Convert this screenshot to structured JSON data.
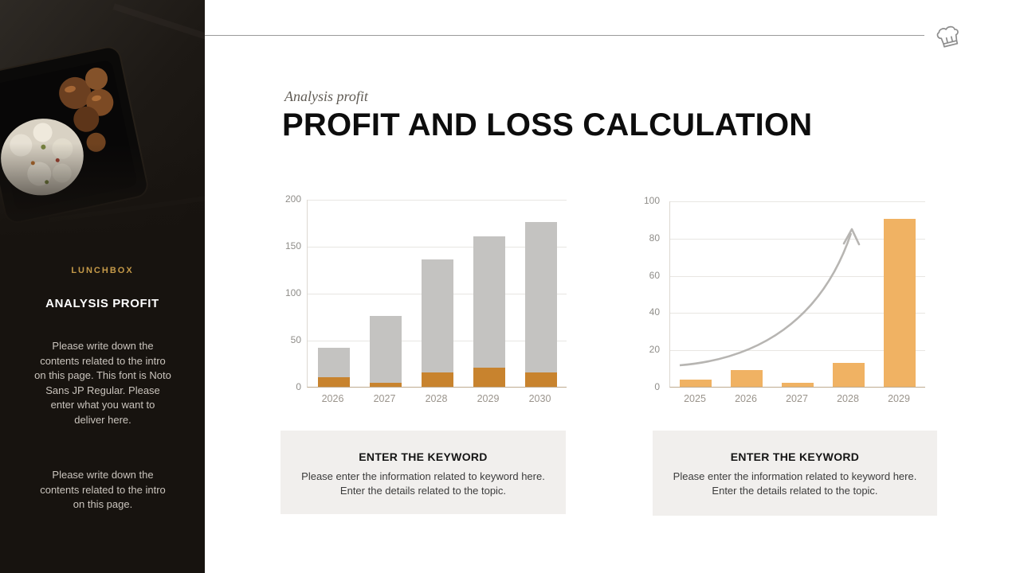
{
  "sidebar": {
    "brand": "LUNCHBOX",
    "title": "ANALYSIS PROFIT",
    "paragraph1": "Please write down the contents related to the intro on this page. This font is Noto Sans JP Regular. Please enter what you want to deliver here.",
    "paragraph2": "Please write down the contents related to the intro on this page."
  },
  "header": {
    "subtitle": "Analysis profit",
    "title": "PROFIT AND LOSS CALCULATION"
  },
  "icons": {
    "top_right": "chef-hat-icon",
    "sidebar_top": "lunchbox-photo"
  },
  "keyword_boxes": [
    {
      "title": "ENTER THE KEYWORD",
      "body": "Please enter the information related to keyword here. Enter the details related to the topic."
    },
    {
      "title": "ENTER THE KEYWORD",
      "body": "Please enter the information related to keyword here. Enter the details related to the topic."
    }
  ],
  "chart_data": [
    {
      "type": "bar",
      "stacked": true,
      "categories": [
        "2026",
        "2027",
        "2028",
        "2029",
        "2030"
      ],
      "series": [
        {
          "name": "profit-base",
          "color": "#c8832e",
          "values": [
            10,
            4,
            15,
            20,
            15
          ]
        },
        {
          "name": "revenue",
          "color": "#c4c3c1",
          "values": [
            31,
            71,
            120,
            140,
            160
          ]
        }
      ],
      "totals": [
        41,
        75,
        135,
        160,
        175
      ],
      "title": "",
      "xlabel": "",
      "ylabel": "",
      "ylim": [
        0,
        200
      ],
      "yticks": [
        0,
        50,
        100,
        150,
        200
      ],
      "grid": true,
      "legend": false
    },
    {
      "type": "bar",
      "stacked": false,
      "categories": [
        "2025",
        "2026",
        "2027",
        "2028",
        "2029"
      ],
      "series": [
        {
          "name": "profit",
          "color": "#f0b263",
          "values": [
            4,
            9,
            2,
            13,
            90
          ]
        }
      ],
      "title": "",
      "xlabel": "",
      "ylabel": "",
      "ylim": [
        0,
        100
      ],
      "yticks": [
        0,
        20,
        40,
        60,
        80,
        100
      ],
      "grid": true,
      "legend": false,
      "annotation": "growth-arrow"
    }
  ],
  "colors": {
    "sidebar_bg": "#17130f",
    "brand_gold": "#c59a49",
    "orange_dark": "#c8832e",
    "orange_light": "#f0b263",
    "bar_gray": "#c4c3c1",
    "box_bg": "#f1efed",
    "axis": "#bfab90"
  }
}
